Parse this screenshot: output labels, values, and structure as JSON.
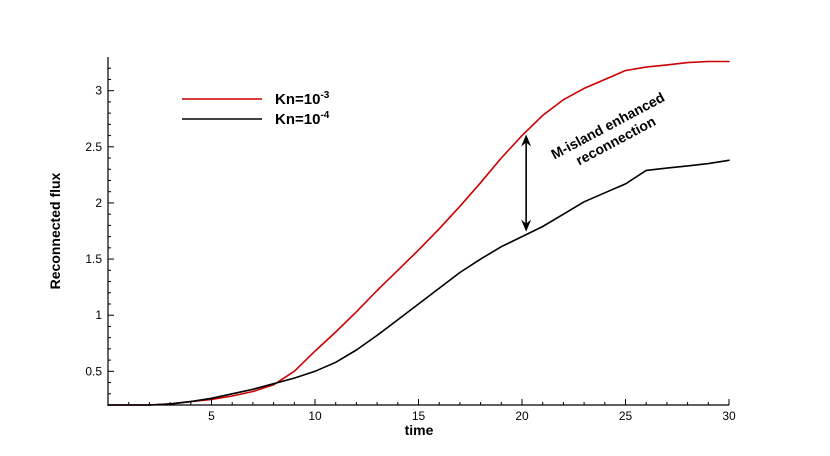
{
  "chart_data": {
    "type": "line",
    "title": "",
    "xlabel": "time",
    "ylabel": "Reconnected flux",
    "xlim": [
      0,
      30
    ],
    "ylim": [
      0.2,
      3.3
    ],
    "xticks": [
      5,
      10,
      15,
      20,
      25,
      30
    ],
    "yticks": [
      0.5,
      1,
      1.5,
      2,
      2.5,
      3
    ],
    "xtick_labels": [
      "5",
      "10",
      "15",
      "20",
      "25",
      "30"
    ],
    "ytick_labels": [
      "0.5",
      "1",
      "1.5",
      "2",
      "2.5",
      "3"
    ],
    "grid": false,
    "legend_position": "top-left",
    "series": [
      {
        "name": "Kn=10^-3",
        "label_base": "Kn=10",
        "label_exp": "-3",
        "color": "#cc0000",
        "x": [
          0,
          2,
          3,
          4,
          5,
          6,
          7,
          8,
          9,
          10,
          11,
          12,
          13,
          14,
          15,
          16,
          17,
          18,
          19,
          20,
          21,
          22,
          23,
          24,
          25,
          26,
          27,
          28,
          29,
          30
        ],
        "y": [
          0.2,
          0.2,
          0.21,
          0.23,
          0.25,
          0.28,
          0.32,
          0.38,
          0.5,
          0.68,
          0.85,
          1.03,
          1.22,
          1.4,
          1.58,
          1.77,
          1.97,
          2.18,
          2.4,
          2.6,
          2.78,
          2.92,
          3.02,
          3.1,
          3.18,
          3.21,
          3.23,
          3.25,
          3.26,
          3.26
        ]
      },
      {
        "name": "Kn=10^-4",
        "label_base": "Kn=10",
        "label_exp": "-4",
        "color": "#000000",
        "x": [
          0,
          2,
          3,
          4,
          5,
          6,
          7,
          8,
          9,
          10,
          11,
          12,
          13,
          14,
          15,
          16,
          17,
          18,
          19,
          20,
          21,
          22,
          23,
          24,
          25,
          26,
          27,
          28,
          29,
          30
        ],
        "y": [
          0.2,
          0.2,
          0.21,
          0.23,
          0.26,
          0.3,
          0.34,
          0.39,
          0.44,
          0.5,
          0.58,
          0.69,
          0.82,
          0.96,
          1.1,
          1.24,
          1.38,
          1.5,
          1.61,
          1.7,
          1.79,
          1.9,
          2.01,
          2.09,
          2.17,
          2.29,
          2.31,
          2.33,
          2.35,
          2.38
        ]
      }
    ],
    "annotation": {
      "line1": "M-island enhanced",
      "line2": "reconnection",
      "arrow_x": 20.2
    }
  }
}
